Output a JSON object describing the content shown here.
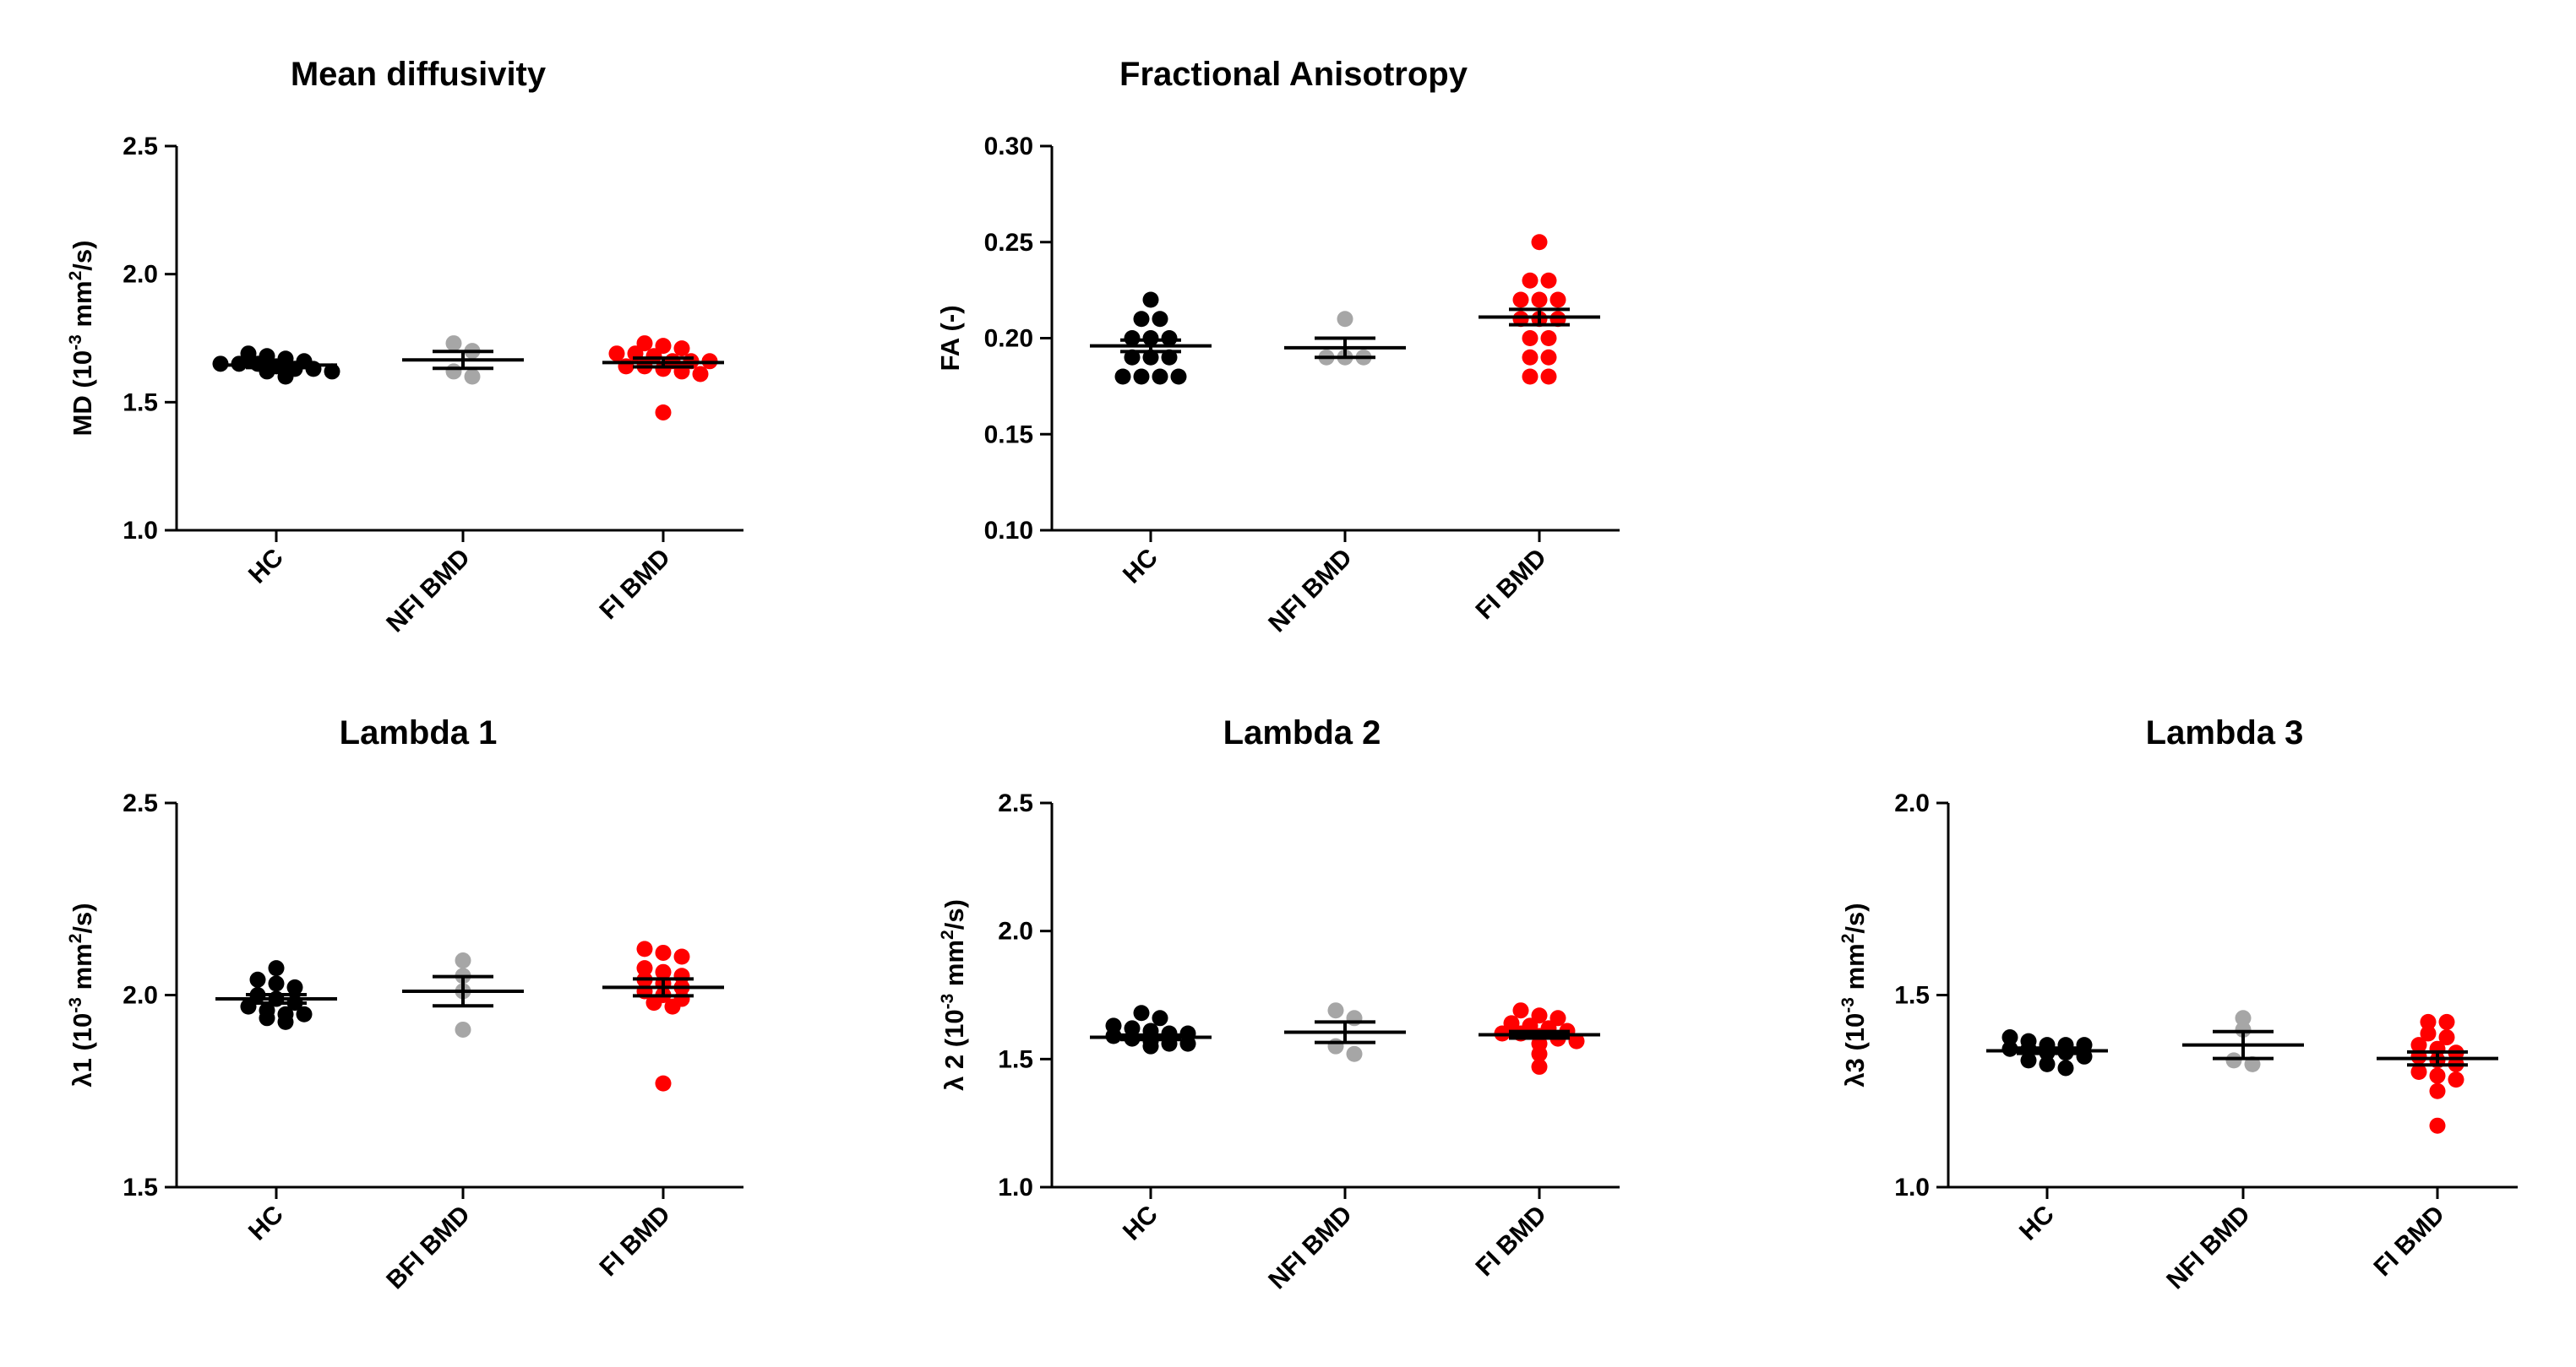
{
  "chart_data": [
    {
      "type": "scatter",
      "title": "Mean diffusivity",
      "ylabel_parts": [
        "MD (10",
        "-3",
        " mm",
        "2",
        "/s)"
      ],
      "ylim": [
        1.0,
        2.5
      ],
      "yticks": [
        1.0,
        1.5,
        2.0,
        2.5
      ],
      "tick_labels": [
        "1.0",
        "1.5",
        "2.0",
        "2.5"
      ],
      "grid": false,
      "categories": [
        "HC",
        "NFI BMD",
        "FI BMD"
      ],
      "colors": [
        "#000000",
        "#a6a6a6",
        "#ff0000"
      ],
      "points": [
        [
          1.63,
          1.65,
          1.67,
          1.69,
          1.62,
          1.65,
          1.6,
          1.63,
          1.66,
          1.68,
          1.62,
          1.65,
          1.64
        ],
        [
          1.73,
          1.7,
          1.62,
          1.6
        ],
        [
          1.63,
          1.66,
          1.69,
          1.71,
          1.64,
          1.68,
          1.72,
          1.62,
          1.66,
          1.69,
          1.61,
          1.64,
          1.66,
          1.73,
          1.46
        ]
      ],
      "mean": [
        1.645,
        1.665,
        1.655
      ],
      "sem": [
        0.01,
        0.033,
        0.017
      ]
    },
    {
      "type": "scatter",
      "title": "Fractional Anisotropy",
      "ylabel_parts": [
        "FA (-)"
      ],
      "ylim": [
        0.1,
        0.3
      ],
      "yticks": [
        0.1,
        0.15,
        0.2,
        0.25,
        0.3
      ],
      "tick_labels": [
        "0.10",
        "0.15",
        "0.20",
        "0.25",
        "0.30"
      ],
      "grid": false,
      "categories": [
        "HC",
        "NFI BMD",
        "FI BMD"
      ],
      "colors": [
        "#000000",
        "#a6a6a6",
        "#ff0000"
      ],
      "points": [
        [
          0.22,
          0.21,
          0.21,
          0.2,
          0.2,
          0.19,
          0.19,
          0.19,
          0.18,
          0.18,
          0.18,
          0.18,
          0.2
        ],
        [
          0.21,
          0.19,
          0.19,
          0.19
        ],
        [
          0.25,
          0.23,
          0.23,
          0.22,
          0.22,
          0.22,
          0.21,
          0.21,
          0.21,
          0.2,
          0.2,
          0.19,
          0.19,
          0.18,
          0.18
        ]
      ],
      "mean": [
        0.196,
        0.195,
        0.211
      ],
      "sem": [
        0.003,
        0.005,
        0.004
      ]
    },
    {
      "type": "scatter",
      "title": "Lambda 1",
      "ylabel_parts": [
        "λ1 (10",
        "-3",
        " mm",
        "2",
        "/s)"
      ],
      "ylim": [
        1.5,
        2.5
      ],
      "yticks": [
        1.5,
        2.0,
        2.5
      ],
      "tick_labels": [
        "1.5",
        "2.0",
        "2.5"
      ],
      "grid": false,
      "categories": [
        "HC",
        "BFI BMD",
        "FI BMD"
      ],
      "colors": [
        "#000000",
        "#a6a6a6",
        "#ff0000"
      ],
      "points": [
        [
          2.07,
          2.04,
          2.03,
          2.02,
          2.0,
          1.99,
          1.98,
          1.97,
          1.96,
          1.95,
          1.95,
          1.94,
          1.93
        ],
        [
          2.09,
          2.05,
          2.01,
          1.91
        ],
        [
          2.12,
          2.11,
          2.1,
          2.07,
          2.06,
          2.05,
          2.04,
          2.03,
          2.02,
          2.01,
          2.0,
          1.99,
          1.98,
          1.97,
          1.77
        ]
      ],
      "mean": [
        1.99,
        2.01,
        2.02
      ],
      "sem": [
        0.011,
        0.038,
        0.022
      ]
    },
    {
      "type": "scatter",
      "title": "Lambda 2",
      "ylabel_parts": [
        "λ 2 (10",
        "-3",
        "  mm",
        "2",
        "/s)"
      ],
      "ylim": [
        1.0,
        2.5
      ],
      "yticks": [
        1.0,
        1.5,
        2.0,
        2.5
      ],
      "tick_labels": [
        "1.0",
        "1.5",
        "2.0",
        "2.5"
      ],
      "grid": false,
      "categories": [
        "HC",
        "NFI BMD",
        "FI BMD"
      ],
      "colors": [
        "#000000",
        "#a6a6a6",
        "#ff0000"
      ],
      "points": [
        [
          1.68,
          1.66,
          1.63,
          1.62,
          1.6,
          1.6,
          1.59,
          1.58,
          1.57,
          1.56,
          1.56,
          1.55,
          1.61
        ],
        [
          1.69,
          1.66,
          1.55,
          1.52
        ],
        [
          1.69,
          1.67,
          1.66,
          1.64,
          1.63,
          1.62,
          1.61,
          1.6,
          1.6,
          1.59,
          1.58,
          1.57,
          1.56,
          1.52,
          1.47
        ]
      ],
      "mean": [
        1.585,
        1.605,
        1.595
      ],
      "sem": [
        0.009,
        0.04,
        0.013
      ]
    },
    {
      "type": "scatter",
      "title": "Lambda 3",
      "ylabel_parts": [
        "λ3 (10",
        "-3",
        " mm",
        "2",
        "/s)"
      ],
      "ylim": [
        1.0,
        2.0
      ],
      "yticks": [
        1.0,
        1.5,
        2.0
      ],
      "tick_labels": [
        "1.0",
        "1.5",
        "2.0"
      ],
      "grid": false,
      "categories": [
        "HC",
        "NFI BMD",
        "FI BMD"
      ],
      "colors": [
        "#000000",
        "#a6a6a6",
        "#ff0000"
      ],
      "points": [
        [
          1.39,
          1.38,
          1.37,
          1.37,
          1.36,
          1.36,
          1.35,
          1.35,
          1.34,
          1.33,
          1.32,
          1.31,
          1.37
        ],
        [
          1.44,
          1.41,
          1.33,
          1.32
        ],
        [
          1.43,
          1.43,
          1.4,
          1.39,
          1.37,
          1.36,
          1.35,
          1.34,
          1.33,
          1.32,
          1.3,
          1.29,
          1.28,
          1.25,
          1.16
        ]
      ],
      "mean": [
        1.355,
        1.37,
        1.335
      ],
      "sem": [
        0.007,
        0.035,
        0.017
      ]
    }
  ]
}
